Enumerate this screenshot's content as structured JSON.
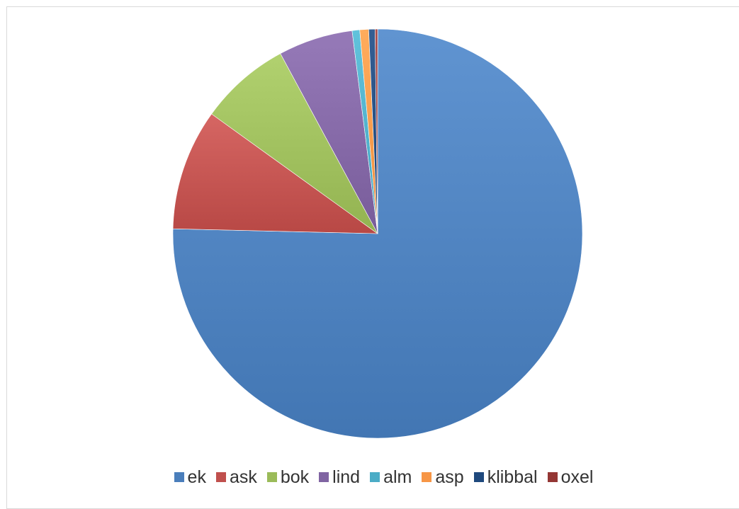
{
  "chart_data": {
    "type": "pie",
    "title": "",
    "categories": [
      "ek",
      "ask",
      "bok",
      "lind",
      "alm",
      "asp",
      "klibbal",
      "oxel"
    ],
    "values": [
      75.6,
      9.6,
      7.2,
      5.9,
      0.6,
      0.7,
      0.5,
      0.2
    ],
    "colors": [
      "#4a7ebb",
      "#c0504d",
      "#9bbb59",
      "#8064a2",
      "#4bacc6",
      "#f79646",
      "#1f497d",
      "#943634"
    ],
    "start_angle_deg": 0,
    "direction": "clockwise",
    "legend_position": "bottom"
  }
}
